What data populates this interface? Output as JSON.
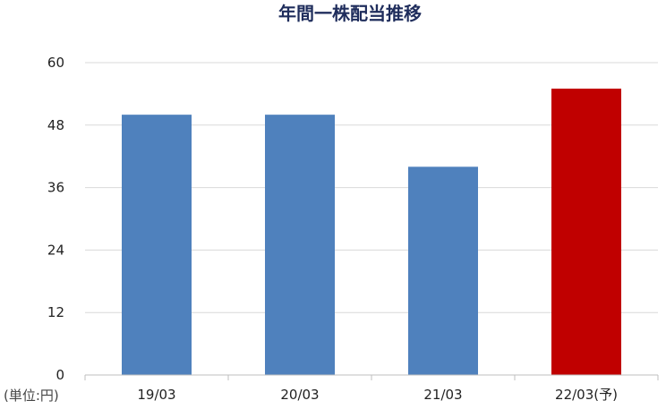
{
  "chart_data": {
    "type": "bar",
    "title": "年間一株配当推移",
    "categories": [
      "19/03",
      "20/03",
      "21/03",
      "22/03(予)"
    ],
    "values": [
      50,
      50,
      40,
      55
    ],
    "bar_colors": [
      "#4f81bd",
      "#4f81bd",
      "#4f81bd",
      "#c00000"
    ],
    "ylim": [
      0,
      60
    ],
    "yticks": [
      0,
      12,
      24,
      36,
      48,
      60
    ],
    "unit_label": "(単位:円)",
    "xlabel": "",
    "ylabel": "",
    "grid": true,
    "legend": "none"
  }
}
